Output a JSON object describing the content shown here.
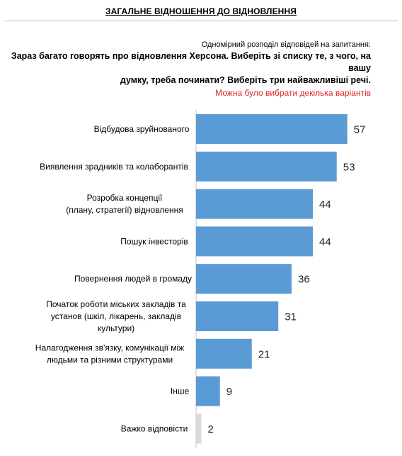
{
  "header": {
    "title": "ЗАГАЛЬНЕ ВІДНОШЕННЯ ДО ВІДНОВЛЕННЯ",
    "subtitle": "Одномірний розподіл відповідей на запитання:",
    "question_line1": "Зараз багато говорять про відновлення Херсона. Виберіть зі списку те, з чого, на вашу",
    "question_line2": "думку, треба починати? Виберіть три найважливіші речі.",
    "note": "Можна було вибрати декілька варіантів"
  },
  "colors": {
    "bar": "#5b9bd5",
    "bar_muted": "#d9d9d9",
    "axis": "#bfbfbf"
  },
  "chart_data": {
    "type": "bar",
    "orientation": "horizontal",
    "categories": [
      [
        "Відбудова зруйнованого"
      ],
      [
        "Виявлення зрадників та колаборантів"
      ],
      [
        "Розробка концепції",
        "(плану, стратегії) відновлення"
      ],
      [
        "Пошук інвесторів"
      ],
      [
        "Повернення людей в громаду"
      ],
      [
        "Початок роботи міських закладів та",
        "установ (шкіл, лікарень, закладів",
        "культури)"
      ],
      [
        "Налагодження зв'язку, комунікації між",
        "людьми та різними структурами"
      ],
      [
        "Інше"
      ],
      [
        "Важко відповісти"
      ]
    ],
    "values": [
      57,
      53,
      44,
      44,
      36,
      31,
      21,
      9,
      2
    ],
    "muted": [
      false,
      false,
      false,
      false,
      false,
      false,
      false,
      false,
      true
    ],
    "xlim": [
      0,
      100
    ],
    "grid": false
  }
}
